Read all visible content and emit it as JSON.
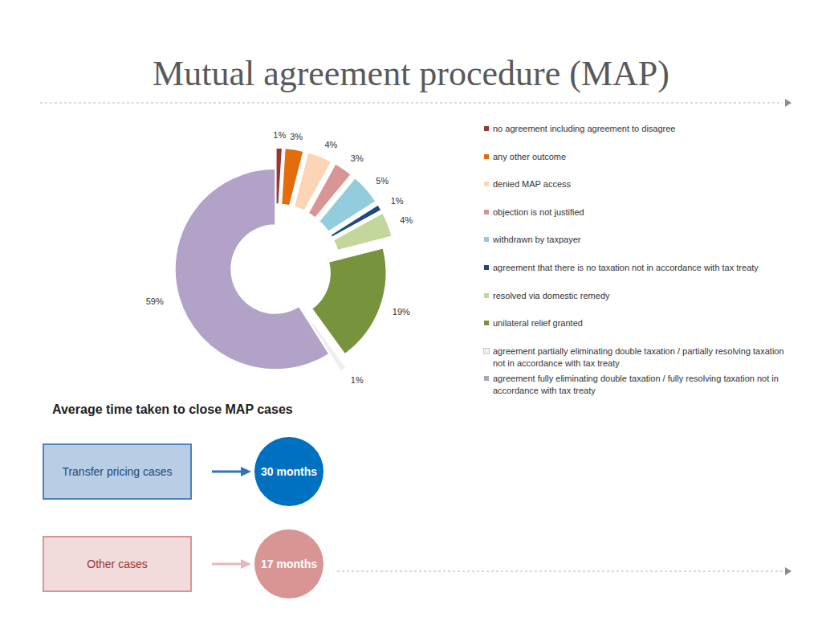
{
  "slide": {
    "title": "Mutual agreement procedure (MAP)"
  },
  "chart_data": {
    "type": "donut",
    "categories": [
      "no agreement including agreement to disagree",
      "any other outcome",
      "denied MAP access",
      "objection is not justified",
      "withdrawn by taxpayer",
      "agreement that there is no taxation not in accordance with tax treaty",
      "resolved via domestic remedy",
      "unilateral relief granted",
      "agreement partially eliminating double taxation  / partially resolving taxation not in accordance with tax treaty",
      "agreement fully eliminating double taxation  / fully resolving taxation not in accordance with tax treaty"
    ],
    "values": [
      1,
      3,
      4,
      3,
      5,
      1,
      4,
      19,
      1,
      59
    ],
    "value_labels": [
      "1%",
      "3%",
      "4%",
      "3%",
      "5%",
      "1%",
      "4%",
      "19%",
      "1%",
      "59%"
    ],
    "colors": [
      "#953735",
      "#e46c0a",
      "#fbd5b5",
      "#d99594",
      "#93cddd",
      "#1f497d",
      "#c3d69b",
      "#77933c",
      "#eeeeee",
      "#b3a2c7"
    ],
    "data_labels": true,
    "legend": "right"
  },
  "timing": {
    "title": "Average time taken to close MAP cases",
    "items": [
      {
        "label": "Transfer pricing cases",
        "value": "30 months"
      },
      {
        "label": "Other cases",
        "value": "17 months"
      }
    ]
  }
}
